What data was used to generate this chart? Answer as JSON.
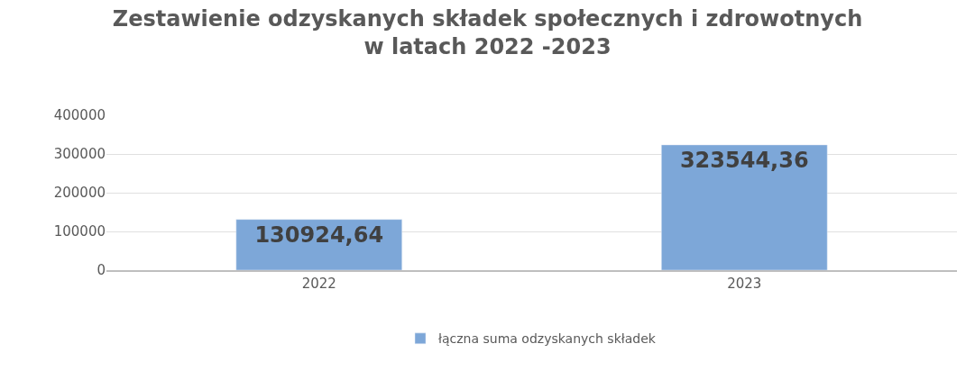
{
  "chart_data": {
    "type": "bar",
    "title": "Zestawienie odzyskanych składek społecznych i zdrowotnych\nw latach 2022 -2023",
    "categories": [
      "2022",
      "2023"
    ],
    "series": [
      {
        "name": "łączna suma odzyskanych składek",
        "color": "#7da7d8",
        "values": [
          130924.64,
          323544.36
        ],
        "value_labels": [
          "130924,64",
          "323544,36"
        ]
      }
    ],
    "ylim": [
      0,
      400000
    ],
    "yticks": [
      0,
      100000,
      200000,
      300000,
      400000
    ],
    "grid": "y",
    "legend": "bottom"
  }
}
